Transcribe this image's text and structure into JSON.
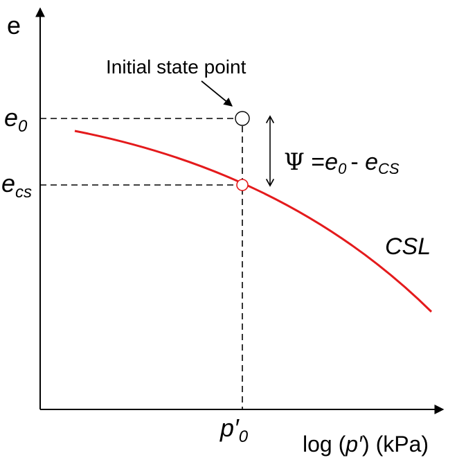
{
  "axes": {
    "y_label": "e",
    "x_label_pre": "log (",
    "x_label_var": "p′",
    "x_label_post": ") (kPa)"
  },
  "ticks": {
    "e0_base": "e",
    "e0_sub": "0",
    "ecs_base": "e",
    "ecs_sub": "cs",
    "p0_base": "p′",
    "p0_sub": "0"
  },
  "annotations": {
    "initial_state": "Initial state point",
    "psi_symbol": "Ψ",
    "psi_eq": " =",
    "psi_e0_base": "e",
    "psi_e0_sub": "0",
    "psi_minus": "- ",
    "psi_ecs_base": "e",
    "psi_ecs_sub": "CS",
    "csl_label": "CSL"
  },
  "colors": {
    "csl_line": "#e41a1c",
    "axes": "#000000",
    "point_fill": "#ffffff"
  }
}
